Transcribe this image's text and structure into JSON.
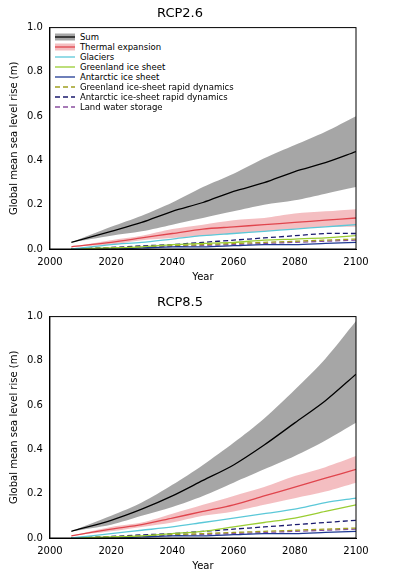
{
  "chart_data": [
    {
      "type": "line",
      "title": "RCP2.6",
      "x_label": "Year",
      "y_label": "Global mean sea level rise (m)",
      "x": [
        2007,
        2020,
        2030,
        2040,
        2050,
        2060,
        2070,
        2080,
        2090,
        2100
      ],
      "xlim": [
        2000,
        2100
      ],
      "xticks": [
        2000,
        2020,
        2040,
        2060,
        2080,
        2100
      ],
      "ylim": [
        0,
        1.0
      ],
      "yticks": [
        {
          "value": 0,
          "label": "0.0"
        },
        0.2,
        0.4,
        0.6,
        0.8,
        {
          "value": 1.0,
          "label": "1.0"
        }
      ],
      "grid": false,
      "legend": "upper left",
      "series": [
        {
          "name": "Sum",
          "color": "#000000",
          "line_style": "solid",
          "values": [
            0.03,
            0.08,
            0.12,
            0.17,
            0.21,
            0.26,
            0.3,
            0.35,
            0.39,
            0.44
          ],
          "lower": [
            0.03,
            0.06,
            0.08,
            0.11,
            0.14,
            0.17,
            0.2,
            0.22,
            0.25,
            0.28
          ],
          "upper": [
            0.03,
            0.1,
            0.15,
            0.21,
            0.28,
            0.34,
            0.41,
            0.47,
            0.53,
            0.6
          ]
        },
        {
          "name": "Thermal expansion",
          "color": "#e0454d",
          "line_style": "solid",
          "values": [
            0.01,
            0.03,
            0.05,
            0.07,
            0.09,
            0.1,
            0.11,
            0.12,
            0.13,
            0.14
          ],
          "lower": [
            0.01,
            0.02,
            0.04,
            0.05,
            0.06,
            0.07,
            0.08,
            0.09,
            0.1,
            0.1
          ],
          "upper": [
            0.01,
            0.04,
            0.06,
            0.09,
            0.11,
            0.13,
            0.14,
            0.16,
            0.17,
            0.18
          ]
        },
        {
          "name": "Glaciers",
          "color": "#5bc8d8",
          "line_style": "solid",
          "values": [
            0.0,
            0.02,
            0.03,
            0.045,
            0.06,
            0.07,
            0.08,
            0.09,
            0.1,
            0.11
          ]
        },
        {
          "name": "Greenland ice sheet",
          "color": "#9acd32",
          "line_style": "solid",
          "values": [
            0.0,
            0.005,
            0.01,
            0.02,
            0.025,
            0.03,
            0.04,
            0.045,
            0.05,
            0.06
          ]
        },
        {
          "name": "Antarctic ice sheet",
          "color": "#1f3a93",
          "line_style": "solid",
          "values": [
            0.0,
            0.0,
            0.005,
            0.01,
            0.01,
            0.015,
            0.02,
            0.02,
            0.025,
            0.03
          ]
        },
        {
          "name": "Greenland ice-sheet rapid dynamics",
          "color": "#a0a020",
          "line_style": "dashed",
          "values": [
            0.0,
            0.005,
            0.01,
            0.015,
            0.02,
            0.025,
            0.03,
            0.035,
            0.04,
            0.045
          ]
        },
        {
          "name": "Antarctic ice-sheet rapid dynamics",
          "color": "#1a1a6e",
          "line_style": "dashed",
          "values": [
            0.0,
            0.007,
            0.014,
            0.02,
            0.03,
            0.04,
            0.05,
            0.06,
            0.07,
            0.07
          ]
        },
        {
          "name": "Land water storage",
          "color": "#8a4fa0",
          "line_style": "dashed",
          "values": [
            0.0,
            0.004,
            0.008,
            0.012,
            0.016,
            0.02,
            0.025,
            0.03,
            0.035,
            0.04
          ]
        }
      ]
    },
    {
      "type": "line",
      "title": "RCP8.5",
      "x_label": "Year",
      "y_label": "Global mean sea level rise (m)",
      "x": [
        2007,
        2020,
        2030,
        2040,
        2050,
        2060,
        2070,
        2080,
        2090,
        2100
      ],
      "xlim": [
        2000,
        2100
      ],
      "xticks": [
        2000,
        2020,
        2040,
        2060,
        2080,
        2100
      ],
      "ylim": [
        0,
        1.0
      ],
      "yticks": [
        {
          "value": 0,
          "label": "0.0"
        },
        0.2,
        0.4,
        0.6,
        0.8,
        {
          "value": 1.0,
          "label": "1.0"
        }
      ],
      "grid": false,
      "series": [
        {
          "name": "Sum",
          "color": "#000000",
          "line_style": "solid",
          "values": [
            0.03,
            0.08,
            0.13,
            0.19,
            0.26,
            0.33,
            0.42,
            0.52,
            0.62,
            0.74
          ],
          "lower": [
            0.03,
            0.06,
            0.1,
            0.14,
            0.19,
            0.25,
            0.31,
            0.37,
            0.44,
            0.52
          ],
          "upper": [
            0.03,
            0.1,
            0.16,
            0.24,
            0.33,
            0.43,
            0.54,
            0.67,
            0.81,
            0.98
          ]
        },
        {
          "name": "Thermal expansion",
          "color": "#e0454d",
          "line_style": "solid",
          "values": [
            0.01,
            0.04,
            0.06,
            0.09,
            0.12,
            0.15,
            0.19,
            0.23,
            0.27,
            0.31
          ],
          "lower": [
            0.01,
            0.03,
            0.05,
            0.07,
            0.1,
            0.12,
            0.15,
            0.18,
            0.21,
            0.25
          ],
          "upper": [
            0.01,
            0.05,
            0.07,
            0.11,
            0.15,
            0.19,
            0.23,
            0.28,
            0.32,
            0.37
          ]
        },
        {
          "name": "Glaciers",
          "color": "#5bc8d8",
          "line_style": "solid",
          "values": [
            0.0,
            0.02,
            0.035,
            0.05,
            0.07,
            0.09,
            0.11,
            0.13,
            0.16,
            0.18
          ]
        },
        {
          "name": "Greenland ice sheet",
          "color": "#9acd32",
          "line_style": "solid",
          "values": [
            0.0,
            0.005,
            0.01,
            0.02,
            0.03,
            0.05,
            0.07,
            0.09,
            0.12,
            0.15
          ]
        },
        {
          "name": "Antarctic ice sheet",
          "color": "#1f3a93",
          "line_style": "solid",
          "values": [
            0.0,
            0.0,
            0.005,
            0.01,
            0.01,
            0.015,
            0.02,
            0.02,
            0.025,
            0.03
          ]
        },
        {
          "name": "Greenland ice-sheet rapid dynamics",
          "color": "#a0a020",
          "line_style": "dashed",
          "values": [
            0.0,
            0.005,
            0.01,
            0.015,
            0.02,
            0.025,
            0.03,
            0.035,
            0.04,
            0.045
          ]
        },
        {
          "name": "Antarctic ice-sheet rapid dynamics",
          "color": "#1a1a6e",
          "line_style": "dashed",
          "values": [
            0.0,
            0.007,
            0.014,
            0.02,
            0.03,
            0.04,
            0.05,
            0.06,
            0.07,
            0.08
          ]
        },
        {
          "name": "Land water storage",
          "color": "#8a4fa0",
          "line_style": "dashed",
          "values": [
            0.0,
            0.004,
            0.008,
            0.012,
            0.016,
            0.02,
            0.025,
            0.03,
            0.035,
            0.04
          ]
        }
      ]
    }
  ]
}
